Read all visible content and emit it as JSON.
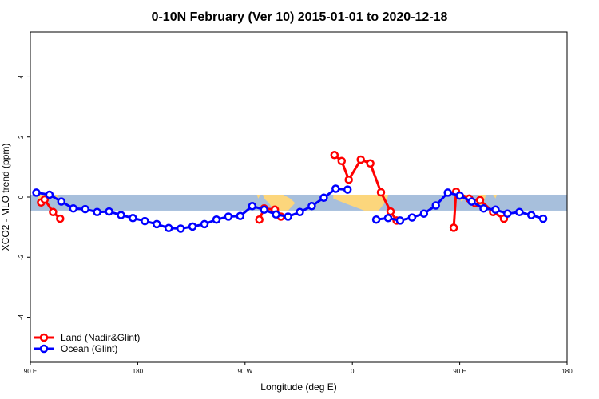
{
  "chart_data": {
    "type": "line",
    "title": "0-10N February (Ver 10)   2015-01-01 to 2020-12-18",
    "xlabel": "Longitude (deg E)",
    "ylabel": "XCO2 - MLO trend (ppm)",
    "xlim": [
      90,
      540
    ],
    "ylim": [
      -5.5,
      5.5
    ],
    "x_ticks": [
      {
        "value": 90,
        "label": "90 E"
      },
      {
        "value": 180,
        "label": "180"
      },
      {
        "value": 270,
        "label": "90 W"
      },
      {
        "value": 360,
        "label": "0"
      },
      {
        "value": 450,
        "label": "90 E"
      },
      {
        "value": 540,
        "label": "180"
      }
    ],
    "y_ticks": [
      -4,
      -2,
      0,
      2,
      4
    ],
    "grid": false,
    "legend_position": "bottom-left",
    "background_map": "equatorial band 0-10N, land tan, ocean blue",
    "band": {
      "y_min": -0.45,
      "y_max": 0.08,
      "ocean_color": "#a7bfdc",
      "land_color": "#fcd67c"
    },
    "series": [
      {
        "name": "Land (Nadir&Glint)",
        "color": "#ff0000",
        "segments": [
          [
            [
              99,
              -0.18
            ],
            [
              102,
              -0.08
            ],
            [
              109,
              -0.5
            ],
            [
              115,
              -0.72
            ]
          ],
          [
            [
              282,
              -0.75
            ],
            [
              286,
              -0.38
            ],
            [
              295,
              -0.42
            ],
            [
              300,
              -0.65
            ]
          ],
          [
            [
              345,
              1.4
            ],
            [
              351,
              1.2
            ],
            [
              357,
              0.58
            ],
            [
              367,
              1.25
            ],
            [
              375,
              1.12
            ],
            [
              384,
              0.16
            ],
            [
              392,
              -0.48
            ],
            [
              397,
              -0.78
            ]
          ],
          [
            [
              445,
              -1.02
            ],
            [
              447,
              0.18
            ],
            [
              458,
              -0.05
            ],
            [
              463,
              -0.2
            ],
            [
              467,
              -0.1
            ],
            [
              478,
              -0.5
            ],
            [
              487,
              -0.72
            ]
          ]
        ]
      },
      {
        "name": "Ocean (Glint)",
        "color": "#0000ff",
        "segments": [
          [
            [
              95,
              0.15
            ],
            [
              106,
              0.08
            ],
            [
              116,
              -0.15
            ],
            [
              126,
              -0.38
            ],
            [
              136,
              -0.4
            ],
            [
              146,
              -0.5
            ],
            [
              156,
              -0.48
            ],
            [
              166,
              -0.6
            ],
            [
              176,
              -0.7
            ],
            [
              186,
              -0.8
            ],
            [
              196,
              -0.9
            ],
            [
              206,
              -1.03
            ],
            [
              216,
              -1.05
            ],
            [
              226,
              -0.98
            ],
            [
              236,
              -0.9
            ],
            [
              246,
              -0.75
            ],
            [
              256,
              -0.65
            ],
            [
              266,
              -0.63
            ],
            [
              276,
              -0.3
            ],
            [
              286,
              -0.42
            ],
            [
              296,
              -0.58
            ],
            [
              306,
              -0.65
            ],
            [
              316,
              -0.5
            ],
            [
              326,
              -0.3
            ],
            [
              336,
              -0.02
            ],
            [
              346,
              0.28
            ],
            [
              356,
              0.25
            ]
          ],
          [
            [
              380,
              -0.75
            ],
            [
              390,
              -0.7
            ],
            [
              400,
              -0.78
            ],
            [
              410,
              -0.68
            ],
            [
              420,
              -0.55
            ],
            [
              430,
              -0.28
            ],
            [
              440,
              0.15
            ],
            [
              450,
              0.05
            ],
            [
              460,
              -0.15
            ],
            [
              470,
              -0.38
            ],
            [
              480,
              -0.42
            ],
            [
              490,
              -0.55
            ],
            [
              500,
              -0.5
            ],
            [
              510,
              -0.6
            ],
            [
              520,
              -0.72
            ]
          ]
        ]
      }
    ]
  }
}
